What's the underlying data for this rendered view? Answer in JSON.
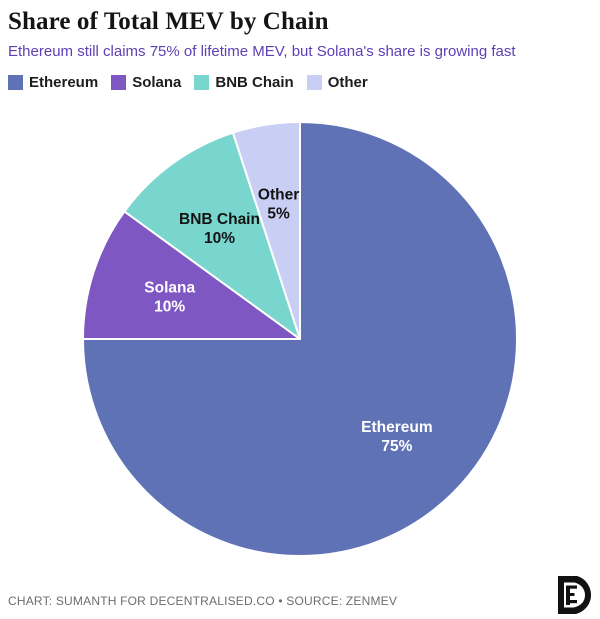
{
  "header": {
    "title": "Share of Total MEV by Chain",
    "subtitle": "Ethereum still claims 75% of lifetime MEV, but Solana's share is growing fast"
  },
  "chart_data": {
    "type": "pie",
    "title": "Share of Total MEV by Chain",
    "subtitle": "Ethereum still claims 75% of lifetime MEV, but Solana's share is growing fast",
    "categories": [
      "Ethereum",
      "Solana",
      "BNB Chain",
      "Other"
    ],
    "values": [
      75,
      10,
      10,
      5
    ],
    "unit": "%",
    "colors": [
      "#5f72b6",
      "#7e57c2",
      "#79d6ce",
      "#c9cef5"
    ],
    "slice_label_colors": [
      "#ffffff",
      "#ffffff",
      "#131313",
      "#131313"
    ],
    "start_angle_deg": 0,
    "direction": "clockwise",
    "legend_position": "top",
    "labels_inside": true,
    "label_radius_px": 137,
    "radius_px": 217
  },
  "legend": {
    "items": [
      {
        "label": "Ethereum",
        "color": "#5f72b6"
      },
      {
        "label": "Solana",
        "color": "#7e57c2"
      },
      {
        "label": "BNB Chain",
        "color": "#79d6ce"
      },
      {
        "label": "Other",
        "color": "#c9cef5"
      }
    ]
  },
  "colors": {
    "title": "#141414",
    "subtitle": "#5e3fb5",
    "legend_text": "#1d1d1d",
    "footer_text": "#6d6d6d",
    "slice_stroke": "#ffffff",
    "logo": "#111111"
  },
  "footer": {
    "credit": "CHART: SUMANTH FOR DECENTRALISED.CO • SOURCE: ZENMEV",
    "logo": "decentralised-co-logo"
  }
}
